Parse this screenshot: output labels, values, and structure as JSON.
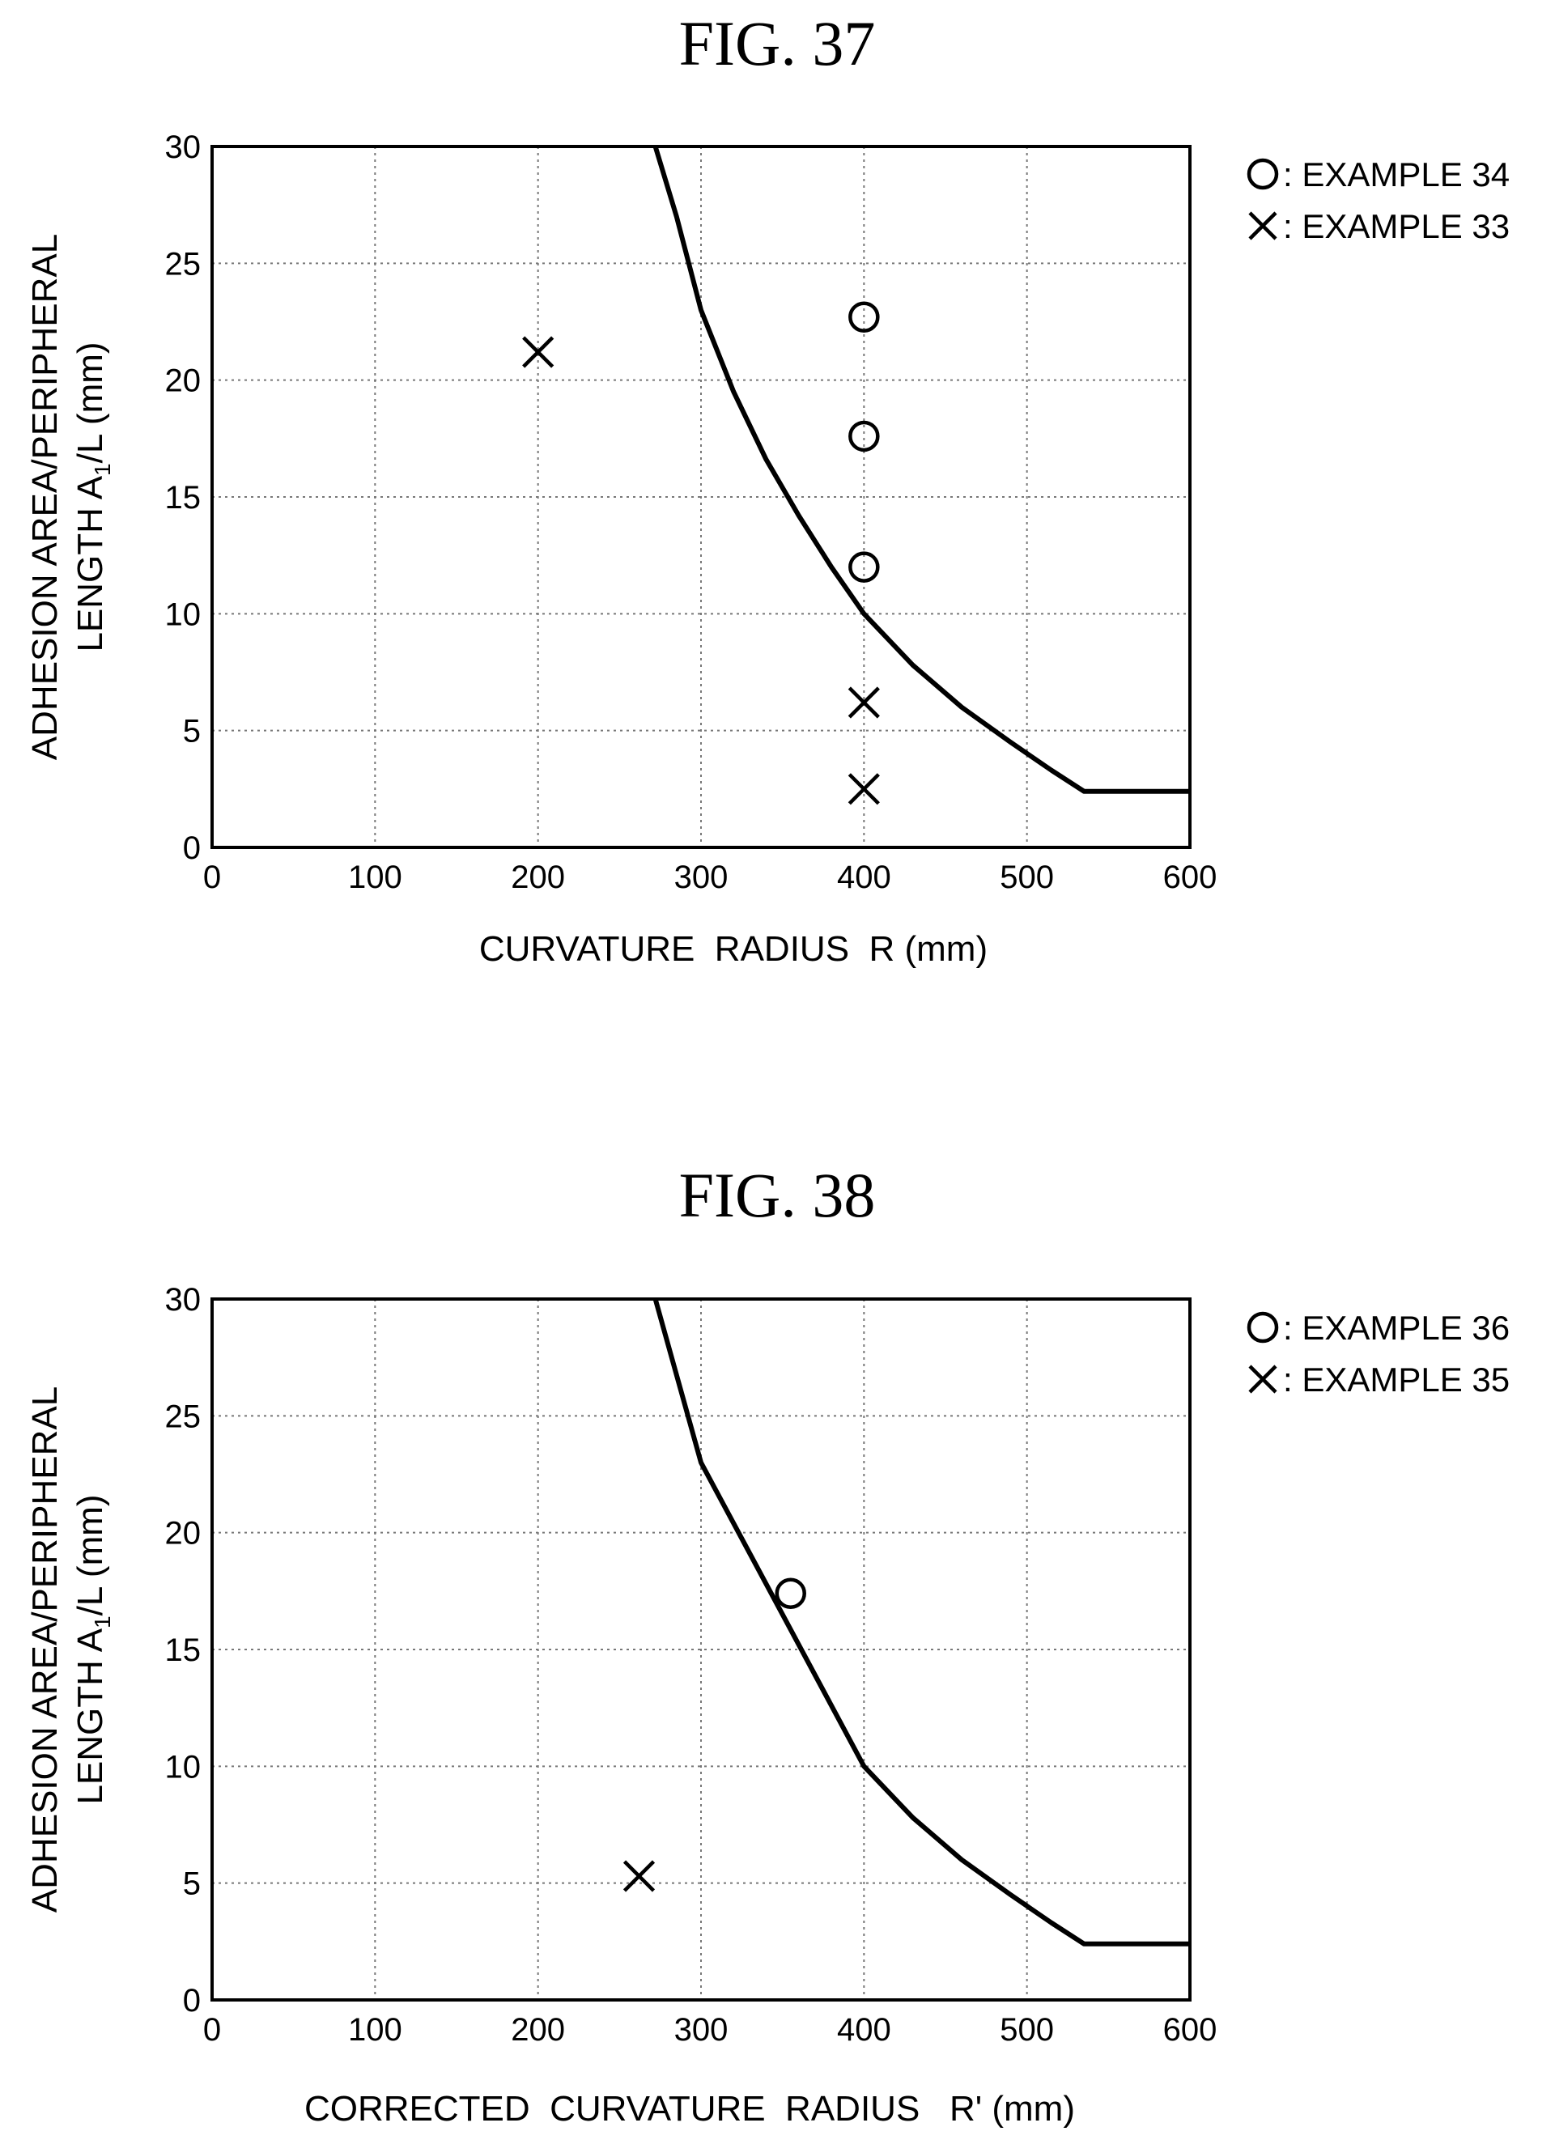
{
  "chart_data": [
    {
      "type": "scatter",
      "title": "FIG. 37",
      "xlabel": "CURVATURE  RADIUS  R (mm)",
      "ylabel_line1": "ADHESION AREA/PERIPHERAL",
      "ylabel_line2_prefix": "LENGTH A",
      "ylabel_line2_sub": "1",
      "ylabel_line2_suffix": "/L (mm)",
      "xlim": [
        0,
        600
      ],
      "ylim": [
        0,
        30
      ],
      "xticks": [
        "0",
        "100",
        "200",
        "300",
        "400",
        "500",
        "600"
      ],
      "yticks": [
        "0",
        "5",
        "10",
        "15",
        "20",
        "25",
        "30"
      ],
      "grid": true,
      "legend_position": "top-right-outside",
      "series": [
        {
          "name": "EXAMPLE 34",
          "legend_label": ": EXAMPLE 34",
          "marker": "circle",
          "points": [
            [
              400,
              22.7
            ],
            [
              400,
              17.6
            ],
            [
              400,
              12.0
            ]
          ]
        },
        {
          "name": "EXAMPLE 33",
          "legend_label": ": EXAMPLE 33",
          "marker": "cross",
          "points": [
            [
              200,
              21.2
            ],
            [
              400,
              6.2
            ],
            [
              400,
              2.5
            ]
          ]
        }
      ],
      "boundary_curve": [
        [
          272,
          30
        ],
        [
          285,
          27
        ],
        [
          300,
          23
        ],
        [
          320,
          19.5
        ],
        [
          340,
          16.6
        ],
        [
          360,
          14.2
        ],
        [
          380,
          12.0
        ],
        [
          400,
          10.0
        ],
        [
          430,
          7.8
        ],
        [
          460,
          6.0
        ],
        [
          490,
          4.5
        ],
        [
          515,
          3.3
        ],
        [
          535,
          2.4
        ],
        [
          600,
          2.4
        ]
      ]
    },
    {
      "type": "scatter",
      "title": "FIG. 38",
      "xlabel": "CORRECTED  CURVATURE  RADIUS   R' (mm)",
      "ylabel_line1": "ADHESION AREA/PERIPHERAL",
      "ylabel_line2_prefix": "LENGTH A",
      "ylabel_line2_sub": "1",
      "ylabel_line2_suffix": "/L (mm)",
      "xlim": [
        0,
        600
      ],
      "ylim": [
        0,
        30
      ],
      "xticks": [
        "0",
        "100",
        "200",
        "300",
        "400",
        "500",
        "600"
      ],
      "yticks": [
        "0",
        "5",
        "10",
        "15",
        "20",
        "25",
        "30"
      ],
      "grid": true,
      "legend_position": "top-right-outside",
      "series": [
        {
          "name": "EXAMPLE 36",
          "legend_label": ": EXAMPLE 36",
          "marker": "circle",
          "points": [
            [
              355,
              17.4
            ]
          ]
        },
        {
          "name": "EXAMPLE 35",
          "legend_label": ": EXAMPLE 35",
          "marker": "cross",
          "points": [
            [
              262,
              5.3
            ]
          ]
        }
      ],
      "boundary_curve": [
        [
          272,
          30
        ],
        [
          300,
          23
        ],
        [
          350,
          16.5
        ],
        [
          400,
          10.0
        ],
        [
          430,
          7.8
        ],
        [
          460,
          6.0
        ],
        [
          490,
          4.5
        ],
        [
          515,
          3.3
        ],
        [
          535,
          2.4
        ],
        [
          600,
          2.4
        ]
      ]
    }
  ]
}
